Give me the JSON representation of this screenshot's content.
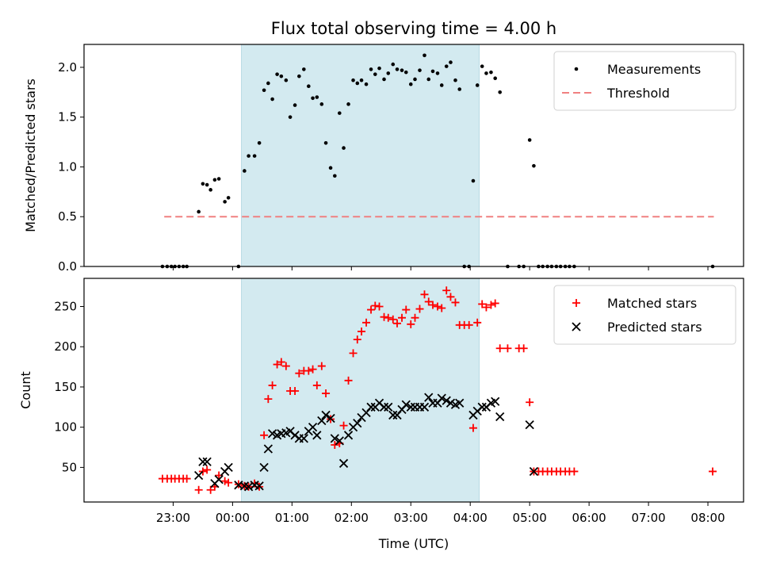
{
  "chart_data": [
    {
      "type": "scatter",
      "title": "Flux total observing time = 4.00 h",
      "ylabel": "Matched/Predicted stars",
      "ylim": [
        0,
        2.23
      ],
      "yticks": [
        "0.0",
        "0.5",
        "1.0",
        "1.5",
        "2.0"
      ],
      "ytick_values": [
        0,
        0.5,
        1.0,
        1.5,
        2.0
      ],
      "xlim_hours": [
        -1.5,
        9.6
      ],
      "shaded_span_hours": [
        1.15,
        5.15
      ],
      "shade_color": "#d3eaf0",
      "legend": {
        "placement": "top-right"
      },
      "series": [
        {
          "name": "Measurements",
          "kind": "dot",
          "color": "#000000",
          "points": [
            [
              -0.18,
              0
            ],
            [
              -0.1,
              0
            ],
            [
              -0.03,
              0
            ],
            [
              0.03,
              0
            ],
            [
              0.1,
              0
            ],
            [
              0.17,
              0
            ],
            [
              0.23,
              0
            ],
            [
              0.43,
              0.55
            ],
            [
              0.5,
              0.83
            ],
            [
              0.57,
              0.82
            ],
            [
              0.63,
              0.77
            ],
            [
              0.7,
              0.87
            ],
            [
              0.77,
              0.88
            ],
            [
              0.87,
              0.65
            ],
            [
              0.93,
              0.69
            ],
            [
              1.1,
              0
            ],
            [
              1.2,
              0.96
            ],
            [
              1.27,
              1.11
            ],
            [
              1.37,
              1.11
            ],
            [
              1.45,
              1.24
            ],
            [
              1.53,
              1.77
            ],
            [
              1.6,
              1.84
            ],
            [
              1.67,
              1.68
            ],
            [
              1.75,
              1.93
            ],
            [
              1.82,
              1.91
            ],
            [
              1.9,
              1.87
            ],
            [
              1.97,
              1.5
            ],
            [
              2.05,
              1.62
            ],
            [
              2.12,
              1.91
            ],
            [
              2.2,
              1.98
            ],
            [
              2.28,
              1.81
            ],
            [
              2.35,
              1.69
            ],
            [
              2.42,
              1.7
            ],
            [
              2.5,
              1.63
            ],
            [
              2.57,
              1.24
            ],
            [
              2.65,
              0.99
            ],
            [
              2.72,
              0.91
            ],
            [
              2.8,
              1.54
            ],
            [
              2.87,
              1.19
            ],
            [
              2.95,
              1.63
            ],
            [
              3.03,
              1.87
            ],
            [
              3.1,
              1.84
            ],
            [
              3.17,
              1.87
            ],
            [
              3.25,
              1.83
            ],
            [
              3.33,
              1.98
            ],
            [
              3.4,
              1.93
            ],
            [
              3.47,
              1.99
            ],
            [
              3.55,
              1.88
            ],
            [
              3.62,
              1.94
            ],
            [
              3.7,
              2.03
            ],
            [
              3.77,
              1.98
            ],
            [
              3.85,
              1.97
            ],
            [
              3.92,
              1.95
            ],
            [
              4.0,
              1.83
            ],
            [
              4.07,
              1.88
            ],
            [
              4.15,
              1.97
            ],
            [
              4.23,
              2.12
            ],
            [
              4.3,
              1.88
            ],
            [
              4.37,
              1.96
            ],
            [
              4.45,
              1.94
            ],
            [
              4.52,
              1.82
            ],
            [
              4.6,
              2.01
            ],
            [
              4.67,
              2.05
            ],
            [
              4.75,
              1.87
            ],
            [
              4.82,
              1.78
            ],
            [
              4.9,
              0
            ],
            [
              4.98,
              0
            ],
            [
              5.05,
              0.86
            ],
            [
              5.12,
              1.82
            ],
            [
              5.2,
              2.01
            ],
            [
              5.27,
              1.94
            ],
            [
              5.35,
              1.95
            ],
            [
              5.42,
              1.89
            ],
            [
              5.5,
              1.75
            ],
            [
              5.63,
              0
            ],
            [
              5.82,
              0
            ],
            [
              5.9,
              0
            ],
            [
              6.0,
              1.27
            ],
            [
              6.07,
              1.01
            ],
            [
              6.15,
              0
            ],
            [
              6.22,
              0
            ],
            [
              6.3,
              0
            ],
            [
              6.37,
              0
            ],
            [
              6.45,
              0
            ],
            [
              6.52,
              0
            ],
            [
              6.6,
              0
            ],
            [
              6.67,
              0
            ],
            [
              6.75,
              0
            ],
            [
              9.08,
              0
            ]
          ]
        },
        {
          "name": "Threshold",
          "kind": "dashed-line",
          "color": "#f08080",
          "points": [
            [
              -0.15,
              0.5
            ],
            [
              9.1,
              0.5
            ]
          ]
        }
      ]
    },
    {
      "type": "scatter",
      "title": "",
      "xlabel": "Time (UTC)",
      "ylabel": "Count",
      "ylim": [
        7,
        285
      ],
      "yticks": [
        "50",
        "100",
        "150",
        "200",
        "250"
      ],
      "ytick_values": [
        50,
        100,
        150,
        200,
        250
      ],
      "xlim_hours": [
        -1.5,
        9.6
      ],
      "xticks": [
        "23:00",
        "00:00",
        "01:00",
        "02:00",
        "03:00",
        "04:00",
        "05:00",
        "06:00",
        "07:00",
        "08:00"
      ],
      "xtick_hours": [
        0,
        1,
        2,
        3,
        4,
        5,
        6,
        7,
        8,
        9
      ],
      "shaded_span_hours": [
        1.15,
        5.15
      ],
      "shade_color": "#d3eaf0",
      "legend": {
        "placement": "top-right"
      },
      "series": [
        {
          "name": "Matched stars",
          "kind": "plus",
          "color": "#ff0000",
          "points": [
            [
              -0.18,
              36
            ],
            [
              -0.1,
              36
            ],
            [
              -0.03,
              36
            ],
            [
              0.03,
              36
            ],
            [
              0.1,
              36
            ],
            [
              0.17,
              36
            ],
            [
              0.23,
              36
            ],
            [
              0.43,
              22
            ],
            [
              0.5,
              45
            ],
            [
              0.57,
              47
            ],
            [
              0.63,
              22
            ],
            [
              0.7,
              26
            ],
            [
              0.77,
              40
            ],
            [
              0.87,
              33
            ],
            [
              0.93,
              31
            ],
            [
              1.1,
              29
            ],
            [
              1.2,
              27
            ],
            [
              1.27,
              26
            ],
            [
              1.37,
              30
            ],
            [
              1.45,
              26
            ],
            [
              1.53,
              90
            ],
            [
              1.6,
              135
            ],
            [
              1.67,
              152
            ],
            [
              1.75,
              178
            ],
            [
              1.82,
              181
            ],
            [
              1.9,
              176
            ],
            [
              1.97,
              145
            ],
            [
              2.05,
              145
            ],
            [
              2.12,
              167
            ],
            [
              2.2,
              170
            ],
            [
              2.28,
              170
            ],
            [
              2.35,
              172
            ],
            [
              2.42,
              152
            ],
            [
              2.5,
              176
            ],
            [
              2.57,
              142
            ],
            [
              2.65,
              110
            ],
            [
              2.72,
              78
            ],
            [
              2.8,
              80
            ],
            [
              2.87,
              102
            ],
            [
              2.95,
              158
            ],
            [
              3.03,
              192
            ],
            [
              3.1,
              209
            ],
            [
              3.17,
              219
            ],
            [
              3.25,
              230
            ],
            [
              3.33,
              246
            ],
            [
              3.4,
              251
            ],
            [
              3.47,
              250
            ],
            [
              3.55,
              237
            ],
            [
              3.62,
              236
            ],
            [
              3.7,
              234
            ],
            [
              3.77,
              229
            ],
            [
              3.85,
              236
            ],
            [
              3.92,
              246
            ],
            [
              4.0,
              228
            ],
            [
              4.07,
              236
            ],
            [
              4.15,
              247
            ],
            [
              4.23,
              265
            ],
            [
              4.3,
              256
            ],
            [
              4.37,
              252
            ],
            [
              4.45,
              250
            ],
            [
              4.52,
              248
            ],
            [
              4.6,
              270
            ],
            [
              4.67,
              262
            ],
            [
              4.75,
              255
            ],
            [
              4.82,
              227
            ],
            [
              4.9,
              227
            ],
            [
              4.98,
              227
            ],
            [
              5.05,
              99
            ],
            [
              5.12,
              230
            ],
            [
              5.2,
              253
            ],
            [
              5.27,
              249
            ],
            [
              5.35,
              252
            ],
            [
              5.42,
              254
            ],
            [
              5.5,
              198
            ],
            [
              5.63,
              198
            ],
            [
              5.82,
              198
            ],
            [
              5.9,
              198
            ],
            [
              6.0,
              131
            ],
            [
              6.07,
              45
            ],
            [
              6.15,
              45
            ],
            [
              6.22,
              45
            ],
            [
              6.3,
              45
            ],
            [
              6.37,
              45
            ],
            [
              6.45,
              45
            ],
            [
              6.52,
              45
            ],
            [
              6.6,
              45
            ],
            [
              6.67,
              45
            ],
            [
              6.75,
              45
            ],
            [
              9.08,
              45
            ]
          ]
        },
        {
          "name": "Predicted stars",
          "kind": "cross",
          "color": "#000000",
          "points": [
            [
              0.43,
              40
            ],
            [
              0.5,
              57
            ],
            [
              0.57,
              57
            ],
            [
              0.7,
              30
            ],
            [
              0.77,
              35
            ],
            [
              0.87,
              45
            ],
            [
              0.93,
              50
            ],
            [
              1.1,
              28
            ],
            [
              1.2,
              27
            ],
            [
              1.27,
              26
            ],
            [
              1.37,
              28
            ],
            [
              1.45,
              27
            ],
            [
              1.53,
              50
            ],
            [
              1.6,
              73
            ],
            [
              1.67,
              92
            ],
            [
              1.75,
              90
            ],
            [
              1.82,
              92
            ],
            [
              1.9,
              93
            ],
            [
              1.97,
              95
            ],
            [
              2.05,
              90
            ],
            [
              2.12,
              86
            ],
            [
              2.2,
              86
            ],
            [
              2.28,
              95
            ],
            [
              2.35,
              100
            ],
            [
              2.42,
              90
            ],
            [
              2.5,
              108
            ],
            [
              2.57,
              115
            ],
            [
              2.65,
              111
            ],
            [
              2.72,
              86
            ],
            [
              2.8,
              83
            ],
            [
              2.87,
              55
            ],
            [
              2.95,
              90
            ],
            [
              3.03,
              100
            ],
            [
              3.1,
              105
            ],
            [
              3.17,
              112
            ],
            [
              3.25,
              118
            ],
            [
              3.33,
              125
            ],
            [
              3.4,
              125
            ],
            [
              3.47,
              130
            ],
            [
              3.55,
              125
            ],
            [
              3.62,
              125
            ],
            [
              3.7,
              115
            ],
            [
              3.77,
              115
            ],
            [
              3.85,
              122
            ],
            [
              3.92,
              128
            ],
            [
              4.0,
              125
            ],
            [
              4.07,
              125
            ],
            [
              4.15,
              125
            ],
            [
              4.23,
              125
            ],
            [
              4.3,
              137
            ],
            [
              4.37,
              130
            ],
            [
              4.45,
              130
            ],
            [
              4.52,
              136
            ],
            [
              4.6,
              133
            ],
            [
              4.67,
              130
            ],
            [
              4.75,
              128
            ],
            [
              4.82,
              130
            ],
            [
              5.05,
              115
            ],
            [
              5.12,
              120
            ],
            [
              5.2,
              125
            ],
            [
              5.27,
              125
            ],
            [
              5.35,
              130
            ],
            [
              5.42,
              132
            ],
            [
              5.5,
              113
            ],
            [
              6.0,
              103
            ],
            [
              6.07,
              45
            ]
          ]
        }
      ]
    }
  ]
}
